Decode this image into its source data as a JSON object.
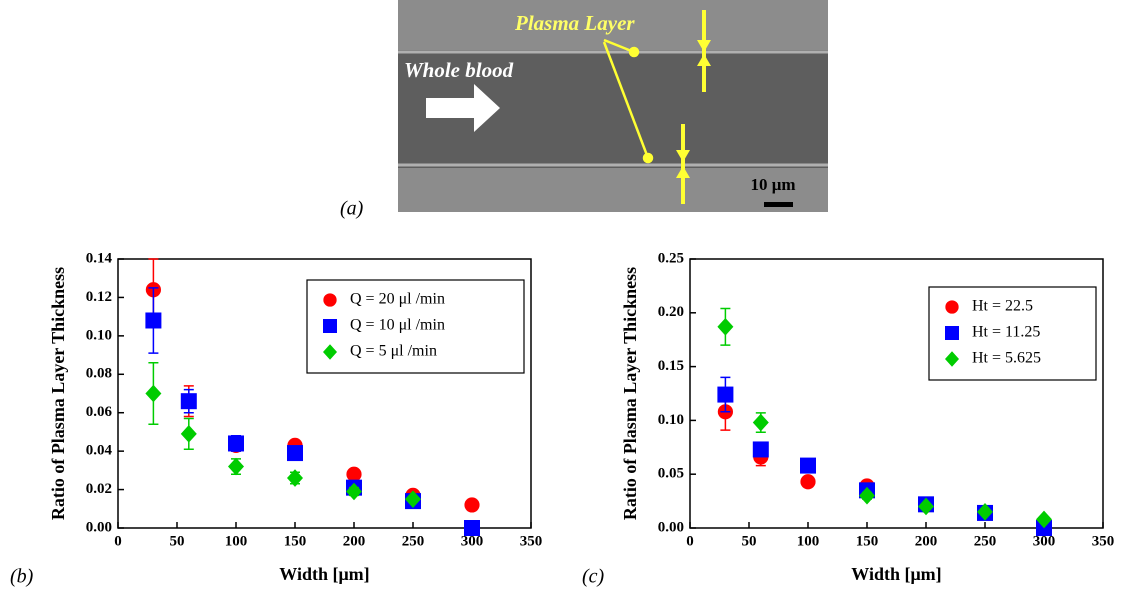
{
  "panel_a": {
    "label": "(a)",
    "annotations": [
      "Plasma Layer",
      "Whole blood"
    ],
    "scale_bar": "10 μm"
  },
  "chart_data": [
    {
      "type": "scatter",
      "panel_label": "(b)",
      "x_label": "Width [μm]",
      "y_label": "Ratio of Plasma Layer Thickness",
      "x": [
        30,
        60,
        100,
        150,
        200,
        250,
        300
      ],
      "series": [
        {
          "name": "Q = 20 μl /min",
          "color": "#ff0000",
          "marker": "circle",
          "values": [
            0.124,
            0.066,
            0.043,
            0.043,
            0.028,
            0.017,
            0.012
          ],
          "errors": [
            0.016,
            0.008,
            0.003,
            0.002,
            0.002,
            0.001,
            0.001
          ]
        },
        {
          "name": "Q = 10 μl /min",
          "color": "#0000ff",
          "marker": "square",
          "values": [
            0.108,
            0.066,
            0.044,
            0.039,
            0.021,
            0.014,
            0.0
          ],
          "errors": [
            0.017,
            0.006,
            0.004,
            0.003,
            0.002,
            0.002,
            0.001
          ]
        },
        {
          "name": "Q = 5 μl /min",
          "color": "#00cc00",
          "marker": "diamond",
          "values": [
            0.07,
            0.049,
            0.032,
            0.026,
            0.019,
            0.015,
            null
          ],
          "errors": [
            0.016,
            0.008,
            0.004,
            0.003,
            0.002,
            0.001,
            null
          ]
        }
      ],
      "xlim": [
        0,
        350
      ],
      "xticks": [
        0,
        50,
        100,
        150,
        200,
        250,
        300,
        350
      ],
      "ylim": [
        0,
        0.14
      ],
      "yticks": [
        {
          "value": 0,
          "label": "0.00"
        },
        {
          "value": 0.02,
          "label": "0.02"
        },
        {
          "value": 0.04,
          "label": "0.04"
        },
        {
          "value": 0.06,
          "label": "0.06"
        },
        {
          "value": 0.08,
          "label": "0.08"
        },
        {
          "value": 0.1,
          "label": "0.10"
        },
        {
          "value": 0.12,
          "label": "0.12"
        },
        {
          "value": 0.14,
          "label": "0.14"
        }
      ],
      "legend": "upper right"
    },
    {
      "type": "scatter",
      "panel_label": "(c)",
      "x_label": "Width [μm]",
      "y_label": "Ratio of Plasma Layer Thickness",
      "x": [
        30,
        60,
        100,
        150,
        200,
        250,
        300
      ],
      "series": [
        {
          "name": "Ht = 22.5",
          "color": "#ff0000",
          "marker": "circle",
          "values": [
            0.108,
            0.066,
            0.043,
            0.039,
            0.021,
            0.014,
            0.0
          ],
          "errors": [
            0.017,
            0.008,
            0.003,
            0.003,
            0.002,
            0.002,
            0.001
          ]
        },
        {
          "name": "Ht = 11.25",
          "color": "#0000ff",
          "marker": "square",
          "values": [
            0.124,
            0.073,
            0.058,
            0.035,
            0.022,
            0.014,
            0.0
          ],
          "errors": [
            0.016,
            0.006,
            0.003,
            0.003,
            0.002,
            0.002,
            0.001
          ]
        },
        {
          "name": "Ht = 5.625",
          "color": "#00cc00",
          "marker": "diamond",
          "values": [
            0.187,
            0.098,
            null,
            0.03,
            0.02,
            0.015,
            0.008
          ],
          "errors": [
            0.017,
            0.009,
            null,
            0.003,
            0.002,
            0.002,
            0.001
          ]
        }
      ],
      "xlim": [
        0,
        350
      ],
      "xticks": [
        0,
        50,
        100,
        150,
        200,
        250,
        300,
        350
      ],
      "ylim": [
        0,
        0.25
      ],
      "yticks": [
        {
          "value": 0,
          "label": "0.00"
        },
        {
          "value": 0.05,
          "label": "0.05"
        },
        {
          "value": 0.1,
          "label": "0.10"
        },
        {
          "value": 0.15,
          "label": "0.15"
        },
        {
          "value": 0.2,
          "label": "0.20"
        },
        {
          "value": 0.25,
          "label": "0.25"
        }
      ],
      "legend": "upper right"
    }
  ]
}
